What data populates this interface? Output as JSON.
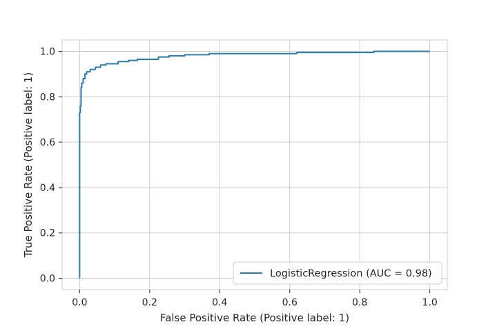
{
  "chart_data": {
    "type": "line",
    "title": "",
    "xlabel": "False Positive Rate (Positive label: 1)",
    "ylabel": "True Positive Rate (Positive label: 1)",
    "xlim": [
      -0.05,
      1.05
    ],
    "ylim": [
      -0.05,
      1.05
    ],
    "xticks": [
      0.0,
      0.2,
      0.4,
      0.6,
      0.8,
      1.0
    ],
    "yticks": [
      0.0,
      0.2,
      0.4,
      0.6,
      0.8,
      1.0
    ],
    "xtick_labels": [
      "0.0",
      "0.2",
      "0.4",
      "0.6",
      "0.8",
      "1.0"
    ],
    "ytick_labels": [
      "0.0",
      "0.2",
      "0.4",
      "0.6",
      "0.8",
      "1.0"
    ],
    "grid": true,
    "legend_position": "lower-right",
    "series": [
      {
        "name": "LogisticRegression (AUC = 0.98)",
        "color": "#2a7ab0",
        "x": [
          0.0,
          0.0,
          0.002,
          0.002,
          0.004,
          0.004,
          0.006,
          0.006,
          0.01,
          0.01,
          0.015,
          0.015,
          0.02,
          0.02,
          0.03,
          0.03,
          0.045,
          0.045,
          0.06,
          0.06,
          0.075,
          0.075,
          0.11,
          0.11,
          0.14,
          0.14,
          0.165,
          0.165,
          0.225,
          0.225,
          0.255,
          0.255,
          0.3,
          0.3,
          0.37,
          0.37,
          0.62,
          0.62,
          0.84,
          0.84,
          1.0
        ],
        "y": [
          0.0,
          0.73,
          0.73,
          0.76,
          0.76,
          0.84,
          0.84,
          0.86,
          0.86,
          0.88,
          0.88,
          0.9,
          0.9,
          0.91,
          0.91,
          0.92,
          0.92,
          0.93,
          0.93,
          0.94,
          0.94,
          0.945,
          0.945,
          0.955,
          0.955,
          0.96,
          0.96,
          0.965,
          0.965,
          0.975,
          0.975,
          0.98,
          0.98,
          0.985,
          0.985,
          0.99,
          0.99,
          0.995,
          0.995,
          1.0,
          1.0
        ]
      }
    ]
  }
}
